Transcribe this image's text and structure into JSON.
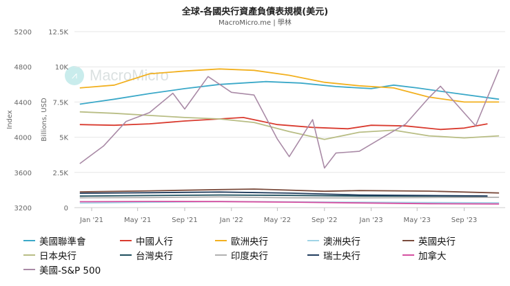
{
  "header": {
    "title": "全球-各國央行資產負債表規模(美元)",
    "subtitle": "MacroMicro.me | 學林"
  },
  "watermark": {
    "text": "MacroMicro",
    "icon": "chart-logo-icon"
  },
  "chart_data": {
    "type": "line",
    "title": "全球-各國央行資產負債表規模(美元)",
    "x_ticks": [
      "Jan '21",
      "May '21",
      "Sep '21",
      "Jan '22",
      "May '22",
      "Sep '22",
      "Jan '23",
      "May '23",
      "Sep '23"
    ],
    "x_range": [
      "2020-12",
      "2023-12"
    ],
    "left_axis": {
      "label": "Index",
      "ticks": [
        "5200",
        "4800",
        "4400",
        "4000",
        "3600",
        "3200"
      ],
      "range": [
        3200,
        5200
      ]
    },
    "right_axis": {
      "label": "Billions, USD",
      "ticks": [
        "12.5K",
        "10K",
        "7.5K",
        "5K",
        "2.5K",
        "0"
      ],
      "range": [
        0,
        12500
      ]
    },
    "series": [
      {
        "name": "美國聯準會",
        "color": "#3aa8c8",
        "axis": "right",
        "points": [
          [
            "2020-12",
            7350
          ],
          [
            "2021-03",
            7700
          ],
          [
            "2021-06",
            8100
          ],
          [
            "2021-09",
            8450
          ],
          [
            "2021-12",
            8750
          ],
          [
            "2022-04",
            8950
          ],
          [
            "2022-07",
            8850
          ],
          [
            "2022-10",
            8600
          ],
          [
            "2023-01",
            8450
          ],
          [
            "2023-03",
            8700
          ],
          [
            "2023-05",
            8500
          ],
          [
            "2023-08",
            8150
          ],
          [
            "2023-12",
            7700
          ]
        ]
      },
      {
        "name": "中國人行",
        "color": "#d93a2e",
        "axis": "right",
        "points": [
          [
            "2020-12",
            5900
          ],
          [
            "2021-03",
            5850
          ],
          [
            "2021-06",
            5950
          ],
          [
            "2021-09",
            6150
          ],
          [
            "2021-12",
            6300
          ],
          [
            "2022-02",
            6400
          ],
          [
            "2022-05",
            5900
          ],
          [
            "2022-08",
            5700
          ],
          [
            "2022-11",
            5600
          ],
          [
            "2023-01",
            5850
          ],
          [
            "2023-04",
            5800
          ],
          [
            "2023-07",
            5550
          ],
          [
            "2023-09",
            5650
          ],
          [
            "2023-11",
            5950
          ]
        ]
      },
      {
        "name": "歐洲央行",
        "color": "#f2b01e",
        "axis": "right",
        "points": [
          [
            "2020-12",
            8500
          ],
          [
            "2021-03",
            8700
          ],
          [
            "2021-06",
            9500
          ],
          [
            "2021-09",
            9700
          ],
          [
            "2021-12",
            9850
          ],
          [
            "2022-03",
            9750
          ],
          [
            "2022-06",
            9400
          ],
          [
            "2022-09",
            8900
          ],
          [
            "2022-12",
            8650
          ],
          [
            "2023-03",
            8500
          ],
          [
            "2023-06",
            7850
          ],
          [
            "2023-09",
            7500
          ],
          [
            "2023-12",
            7500
          ]
        ]
      },
      {
        "name": "澳洲央行",
        "color": "#9fd4e6",
        "axis": "right",
        "points": [
          [
            "2020-12",
            320
          ],
          [
            "2021-06",
            380
          ],
          [
            "2021-12",
            430
          ],
          [
            "2022-06",
            410
          ],
          [
            "2022-12",
            380
          ],
          [
            "2023-06",
            360
          ],
          [
            "2023-12",
            340
          ]
        ]
      },
      {
        "name": "英國央行",
        "color": "#7a4b3c",
        "axis": "right",
        "points": [
          [
            "2020-12",
            1120
          ],
          [
            "2021-06",
            1190
          ],
          [
            "2021-12",
            1280
          ],
          [
            "2022-03",
            1320
          ],
          [
            "2022-09",
            1160
          ],
          [
            "2022-12",
            1210
          ],
          [
            "2023-06",
            1170
          ],
          [
            "2023-12",
            1040
          ]
        ]
      },
      {
        "name": "日本央行",
        "color": "#b8bd84",
        "axis": "right",
        "points": [
          [
            "2020-12",
            6800
          ],
          [
            "2021-03",
            6700
          ],
          [
            "2021-06",
            6550
          ],
          [
            "2021-09",
            6400
          ],
          [
            "2021-12",
            6300
          ],
          [
            "2022-03",
            6050
          ],
          [
            "2022-06",
            5400
          ],
          [
            "2022-09",
            4850
          ],
          [
            "2022-12",
            5350
          ],
          [
            "2023-03",
            5500
          ],
          [
            "2023-06",
            5100
          ],
          [
            "2023-09",
            4950
          ],
          [
            "2023-12",
            5100
          ]
        ]
      },
      {
        "name": "台灣央行",
        "color": "#1c4d5c",
        "axis": "right",
        "points": [
          [
            "2020-12",
            820
          ],
          [
            "2021-06",
            860
          ],
          [
            "2021-12",
            900
          ],
          [
            "2022-06",
            870
          ],
          [
            "2022-12",
            820
          ],
          [
            "2023-06",
            820
          ],
          [
            "2023-11",
            800
          ]
        ]
      },
      {
        "name": "印度央行",
        "color": "#b0b0b0",
        "axis": "right",
        "points": [
          [
            "2020-12",
            700
          ],
          [
            "2021-06",
            720
          ],
          [
            "2021-12",
            760
          ],
          [
            "2022-06",
            700
          ],
          [
            "2022-12",
            690
          ],
          [
            "2023-06",
            720
          ],
          [
            "2023-12",
            730
          ]
        ]
      },
      {
        "name": "瑞士央行",
        "color": "#1f3b5c",
        "axis": "right",
        "points": [
          [
            "2020-12",
            1020
          ],
          [
            "2021-06",
            1060
          ],
          [
            "2021-12",
            1110
          ],
          [
            "2022-06",
            1030
          ],
          [
            "2022-12",
            900
          ],
          [
            "2023-06",
            860
          ],
          [
            "2023-11",
            830
          ]
        ]
      },
      {
        "name": "加拿大",
        "color": "#d54fa0",
        "axis": "right",
        "points": [
          [
            "2020-12",
            420
          ],
          [
            "2021-06",
            440
          ],
          [
            "2021-12",
            430
          ],
          [
            "2022-06",
            390
          ],
          [
            "2022-12",
            330
          ],
          [
            "2023-06",
            280
          ],
          [
            "2023-12",
            260
          ]
        ]
      },
      {
        "name": "美國-S&P 500",
        "color": "#a98aa6",
        "axis": "left",
        "points": [
          [
            "2020-12",
            3700
          ],
          [
            "2021-02",
            3900
          ],
          [
            "2021-04",
            4180
          ],
          [
            "2021-06",
            4280
          ],
          [
            "2021-08",
            4500
          ],
          [
            "2021-09",
            4320
          ],
          [
            "2021-11",
            4690
          ],
          [
            "2022-01",
            4510
          ],
          [
            "2022-03",
            4480
          ],
          [
            "2022-05",
            3980
          ],
          [
            "2022-06",
            3780
          ],
          [
            "2022-08",
            4200
          ],
          [
            "2022-09",
            3650
          ],
          [
            "2022-10",
            3820
          ],
          [
            "2022-12",
            3840
          ],
          [
            "2023-02",
            4000
          ],
          [
            "2023-04",
            4150
          ],
          [
            "2023-06",
            4450
          ],
          [
            "2023-07",
            4580
          ],
          [
            "2023-10",
            4130
          ],
          [
            "2023-12",
            4770
          ]
        ]
      }
    ]
  },
  "legend": [
    {
      "label": "美國聯準會",
      "color": "#3aa8c8"
    },
    {
      "label": "中國人行",
      "color": "#d93a2e"
    },
    {
      "label": "歐洲央行",
      "color": "#f2b01e"
    },
    {
      "label": "澳洲央行",
      "color": "#9fd4e6"
    },
    {
      "label": "英國央行",
      "color": "#7a4b3c"
    },
    {
      "label": "日本央行",
      "color": "#b8bd84"
    },
    {
      "label": "台灣央行",
      "color": "#1c4d5c"
    },
    {
      "label": "印度央行",
      "color": "#b0b0b0"
    },
    {
      "label": "瑞士央行",
      "color": "#1f3b5c"
    },
    {
      "label": "加拿大",
      "color": "#d54fa0"
    },
    {
      "label": "美國-S&P 500",
      "color": "#a98aa6"
    }
  ]
}
